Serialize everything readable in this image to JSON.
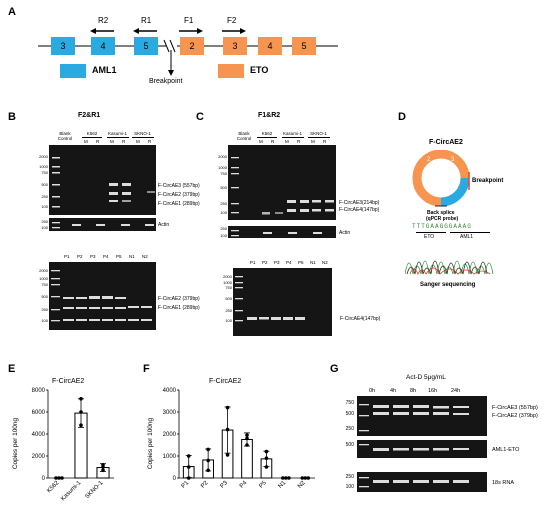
{
  "panels": {
    "A": "A",
    "B": "B",
    "C": "C",
    "D": "D",
    "E": "E",
    "F": "F",
    "G": "G"
  },
  "schematic": {
    "aml1_exons": [
      "3",
      "4",
      "5"
    ],
    "eto_exons": [
      "2",
      "3",
      "4",
      "5"
    ],
    "primers": [
      "R2",
      "R1",
      "F1",
      "F2"
    ],
    "legend_aml1": "AML1",
    "legend_eto": "ETO",
    "breakpoint": "Breakpoint",
    "colors": {
      "aml1": "#29ABE2",
      "eto": "#F7944F"
    }
  },
  "panel_b": {
    "title": "F2&R1",
    "lanes": [
      "Blank Control",
      "K562",
      "Kasumi-1",
      "SKNO-1"
    ],
    "mr": [
      "M",
      "R",
      "M",
      "R",
      "M",
      "R",
      "M",
      "R"
    ],
    "markers": [
      "2000",
      "1000",
      "750",
      "500",
      "250",
      "100"
    ],
    "bands": [
      "F-CircAE3 (557bp)",
      "F-CircAE2 (379bp)",
      "F-CircAE1 (289bp)"
    ],
    "actin_label": "Actin",
    "actin_markers": [
      "250",
      "100"
    ],
    "patients": [
      "P1",
      "P2",
      "P3",
      "P4",
      "P5",
      "N1",
      "N2"
    ],
    "lower_markers": [
      "2000",
      "1000",
      "750",
      "500",
      "250",
      "100"
    ],
    "lower_bands": [
      "F-CircAE2 (379bp)",
      "F-CircAE1 (289bp)"
    ]
  },
  "panel_c": {
    "title": "F1&R2",
    "lanes": [
      "Blank Control",
      "K562",
      "Kasumi-1",
      "SKNO-1"
    ],
    "mr": [
      "M",
      "R",
      "M",
      "R",
      "M",
      "R",
      "M",
      "R"
    ],
    "markers": [
      "2000",
      "1000",
      "750",
      "500",
      "250",
      "100"
    ],
    "bands": [
      "F-CircAE3(214bp)",
      "F-CircAE4(147bp)"
    ],
    "actin_label": "Actin",
    "actin_markers": [
      "250",
      "100"
    ],
    "patients": [
      "P1",
      "P2",
      "P3",
      "P4",
      "P5",
      "N1",
      "N2"
    ],
    "lower_markers": [
      "2000",
      "1000",
      "750",
      "500",
      "250",
      "100"
    ],
    "lower_band": "F-CircAE4(147bp)"
  },
  "panel_d": {
    "title": "F-CircAE2",
    "circle_exons": [
      "2",
      "3",
      "4",
      "5"
    ],
    "breakpoint": "Breakpoint",
    "splice": "Back splice",
    "probe": "(qPCR  probe)",
    "sequence": "TTTGAAGGGAAAG",
    "eto": "ETO",
    "aml1": "AML1",
    "sanger": "Sanger sequencing"
  },
  "chart_data": [
    {
      "type": "bar",
      "title": "F-CircAE2",
      "ylabel": "Copies  per 100ng",
      "categories": [
        "K562",
        "Kasumi-1",
        "SKNO-1"
      ],
      "values": [
        0,
        5900,
        950
      ],
      "errors": [
        0,
        1300,
        350
      ],
      "points": [
        [
          0,
          0,
          0
        ],
        [
          4800,
          6000,
          7200
        ],
        [
          700,
          1000,
          1200
        ]
      ],
      "yticks": [
        "0",
        "2000",
        "4000",
        "6000",
        "8000"
      ],
      "ylim": [
        0,
        8000
      ]
    },
    {
      "type": "bar",
      "title": "F-CircAE2",
      "ylabel": "Copies  per 100ng",
      "categories": [
        "P1",
        "P2",
        "P3",
        "P4",
        "P5",
        "N1",
        "N2"
      ],
      "values": [
        520,
        820,
        2180,
        1750,
        870,
        0,
        0
      ],
      "errors": [
        500,
        500,
        1050,
        300,
        350,
        0,
        0
      ],
      "points": [
        [
          0,
          500,
          1000
        ],
        [
          350,
          800,
          1300
        ],
        [
          1050,
          2200,
          3200
        ],
        [
          1500,
          1800,
          1950
        ],
        [
          500,
          900,
          1200
        ],
        [
          0,
          0,
          0
        ],
        [
          0,
          0,
          0
        ]
      ],
      "yticks": [
        "0",
        "1000",
        "2000",
        "3000",
        "4000"
      ],
      "ylim": [
        0,
        4000
      ]
    }
  ],
  "panel_g": {
    "treatment": "Act-D  5μg/mL",
    "times": [
      "0h",
      "4h",
      "8h",
      "16h",
      "24h"
    ],
    "markers_top": [
      "750",
      "500",
      "250"
    ],
    "markers_mid": [
      "500"
    ],
    "markers_bot": [
      "250",
      "100"
    ],
    "labels": [
      "F-CircAE3 (557bp)",
      "F-CircAE2 (379bp)",
      "AML1-ETO",
      "18s RNA"
    ]
  }
}
